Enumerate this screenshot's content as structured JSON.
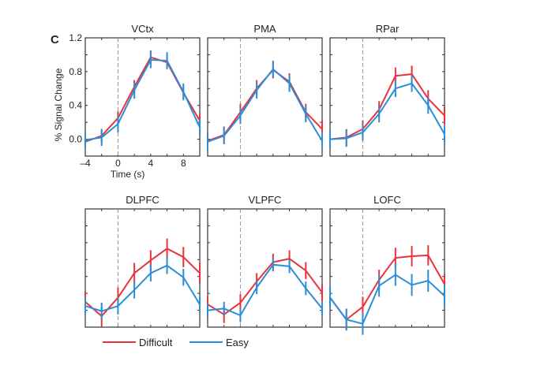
{
  "panel_letter": "C",
  "chart_data": [
    {
      "type": "line",
      "title": "VCtx",
      "xlabel": "Time (s)",
      "ylabel": "% Signal Change",
      "xlim": [
        -4,
        10
      ],
      "ylim": [
        -0.2,
        1.2
      ],
      "xticks": [
        -4,
        0,
        4,
        8
      ],
      "yticks": [
        0.0,
        0.4,
        0.8,
        1.2
      ],
      "ytick_labels": [
        "0.0",
        "0.4",
        "0.8",
        "1.2"
      ],
      "onset_line_x": 0,
      "x": [
        -4,
        -2,
        0,
        2,
        4,
        6,
        8,
        10
      ],
      "series": [
        {
          "name": "Difficult",
          "color": "#e8333a",
          "values": [
            -0.03,
            0.04,
            0.25,
            0.62,
            0.97,
            0.91,
            0.55,
            0.22
          ],
          "err": 0.08
        },
        {
          "name": "Easy",
          "color": "#2a8fd6",
          "values": [
            -0.01,
            0.02,
            0.18,
            0.58,
            0.94,
            0.93,
            0.56,
            0.14
          ],
          "err": 0.1
        }
      ]
    },
    {
      "type": "line",
      "title": "PMA",
      "xlim": [
        -4,
        10
      ],
      "ylim": [
        -0.2,
        1.2
      ],
      "onset_line_x": 0,
      "x": [
        -4,
        -2,
        0,
        2,
        4,
        6,
        8,
        10
      ],
      "series": [
        {
          "name": "Difficult",
          "color": "#e8333a",
          "values": [
            -0.02,
            0.05,
            0.32,
            0.6,
            0.82,
            0.68,
            0.32,
            0.12
          ],
          "err": 0.1
        },
        {
          "name": "Easy",
          "color": "#2a8fd6",
          "values": [
            -0.03,
            0.04,
            0.28,
            0.58,
            0.83,
            0.66,
            0.3,
            -0.02
          ],
          "err": 0.1
        }
      ]
    },
    {
      "type": "line",
      "title": "RPar",
      "xlim": [
        -4,
        10
      ],
      "ylim": [
        -0.2,
        1.2
      ],
      "onset_line_x": 0,
      "x": [
        -4,
        -2,
        0,
        2,
        4,
        6,
        8,
        10
      ],
      "series": [
        {
          "name": "Difficult",
          "color": "#e8333a",
          "values": [
            0.0,
            0.02,
            0.12,
            0.35,
            0.75,
            0.77,
            0.48,
            0.28
          ],
          "err": 0.1
        },
        {
          "name": "Easy",
          "color": "#2a8fd6",
          "values": [
            0.0,
            0.01,
            0.08,
            0.3,
            0.6,
            0.66,
            0.4,
            0.06
          ],
          "err": 0.1
        }
      ]
    },
    {
      "type": "line",
      "title": "DLPFC",
      "xlim": [
        -4,
        10
      ],
      "ylim": [
        -0.2,
        1.2
      ],
      "onset_line_x": 0,
      "x": [
        -4,
        -2,
        0,
        2,
        4,
        6,
        8,
        10
      ],
      "series": [
        {
          "name": "Difficult",
          "color": "#e8333a",
          "values": [
            0.1,
            -0.07,
            0.15,
            0.44,
            0.59,
            0.73,
            0.63,
            0.44
          ],
          "err": 0.12
        },
        {
          "name": "Easy",
          "color": "#2a8fd6",
          "values": [
            0.05,
            -0.01,
            0.05,
            0.24,
            0.44,
            0.53,
            0.39,
            0.07
          ],
          "err": 0.1
        }
      ]
    },
    {
      "type": "line",
      "title": "VLPFC",
      "xlim": [
        -4,
        10
      ],
      "ylim": [
        -0.2,
        1.2
      ],
      "onset_line_x": 0,
      "x": [
        -4,
        -2,
        0,
        2,
        4,
        6,
        8,
        10
      ],
      "series": [
        {
          "name": "Difficult",
          "color": "#e8333a",
          "values": [
            0.07,
            -0.05,
            0.09,
            0.34,
            0.57,
            0.61,
            0.47,
            0.21
          ],
          "err": 0.1
        },
        {
          "name": "Easy",
          "color": "#2a8fd6",
          "values": [
            0.0,
            0.02,
            -0.06,
            0.27,
            0.54,
            0.52,
            0.26,
            0.02
          ],
          "err": 0.08
        }
      ]
    },
    {
      "type": "line",
      "title": "LOFC",
      "xlim": [
        -4,
        10
      ],
      "ylim": [
        -0.2,
        1.2
      ],
      "onset_line_x": 0,
      "x": [
        -4,
        -2,
        0,
        2,
        4,
        6,
        8,
        10
      ],
      "series": [
        {
          "name": "Difficult",
          "color": "#e8333a",
          "values": [
            0.15,
            -0.11,
            0.04,
            0.36,
            0.62,
            0.64,
            0.65,
            0.31
          ],
          "err": 0.12
        },
        {
          "name": "Easy",
          "color": "#2a8fd6",
          "values": [
            0.15,
            -0.11,
            -0.16,
            0.29,
            0.42,
            0.3,
            0.35,
            0.17
          ],
          "err": 0.13
        }
      ]
    }
  ],
  "legend": {
    "placement": "bottom-left",
    "items": [
      {
        "label": "Difficult",
        "color": "#e8333a"
      },
      {
        "label": "Easy",
        "color": "#2a8fd6"
      }
    ]
  }
}
